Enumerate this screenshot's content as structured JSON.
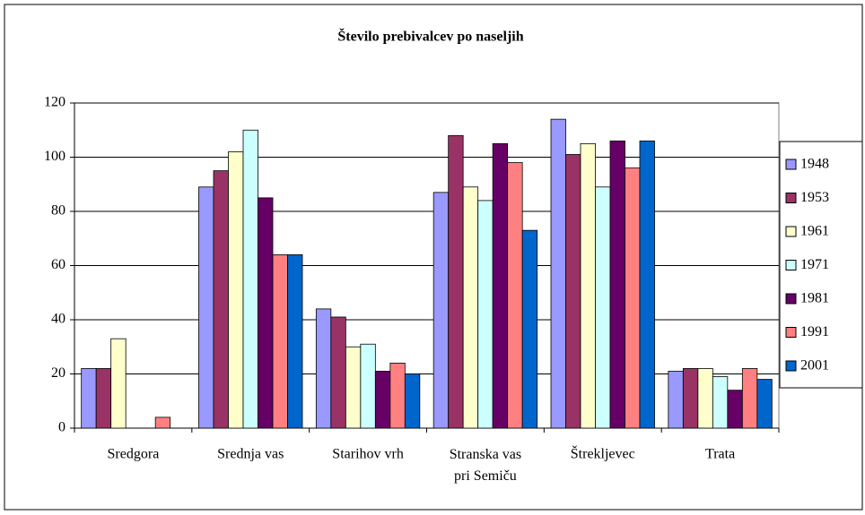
{
  "chart_data": {
    "type": "bar",
    "title": "Število prebivalcev po naseljih",
    "categories": [
      "Sredgora",
      "Srednja vas",
      "Starihov vrh",
      "Stranska vas pri Semiču",
      "Štrekljevec",
      "Trata"
    ],
    "series": [
      {
        "name": "1948",
        "color": "#9999ff",
        "values": [
          22,
          89,
          44,
          87,
          114,
          21
        ]
      },
      {
        "name": "1953",
        "color": "#993366",
        "values": [
          22,
          95,
          41,
          108,
          101,
          22
        ]
      },
      {
        "name": "1961",
        "color": "#ffffcc",
        "values": [
          33,
          102,
          30,
          89,
          105,
          22
        ]
      },
      {
        "name": "1971",
        "color": "#ccffff",
        "values": [
          null,
          110,
          31,
          84,
          89,
          19
        ]
      },
      {
        "name": "1981",
        "color": "#660066",
        "values": [
          null,
          85,
          21,
          105,
          106,
          14
        ]
      },
      {
        "name": "1991",
        "color": "#ff8080",
        "values": [
          4,
          64,
          24,
          98,
          96,
          22
        ]
      },
      {
        "name": "2001",
        "color": "#0066cc",
        "values": [
          null,
          64,
          20,
          73,
          106,
          18
        ]
      }
    ],
    "ylim": [
      0,
      120
    ],
    "yticks": [
      0,
      20,
      40,
      60,
      80,
      100,
      120
    ],
    "grid": true,
    "legend": "right"
  }
}
